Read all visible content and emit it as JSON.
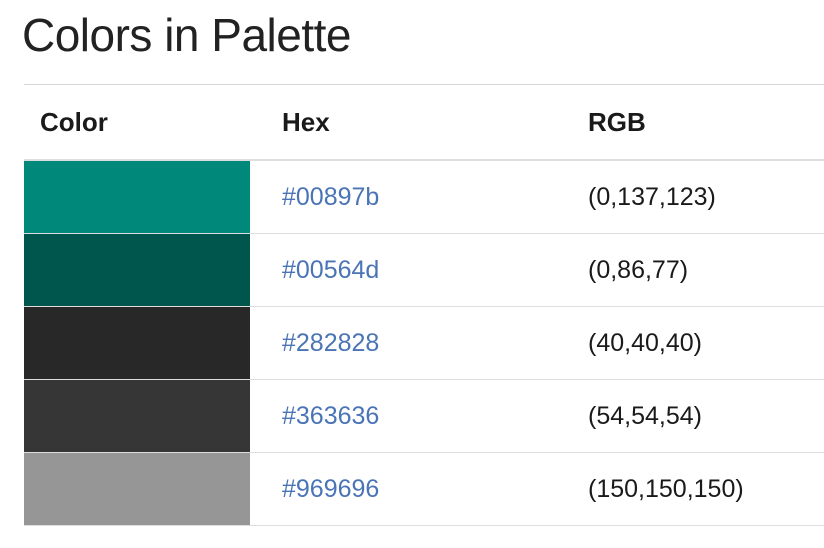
{
  "page": {
    "title": "Colors in Palette"
  },
  "table": {
    "headers": {
      "color": "Color",
      "hex": "Hex",
      "rgb": "RGB"
    },
    "rows": [
      {
        "swatch": "#00897b",
        "hex": "#00897b",
        "rgb": "(0,137,123)"
      },
      {
        "swatch": "#00564d",
        "hex": "#00564d",
        "rgb": "(0,86,77)"
      },
      {
        "swatch": "#282828",
        "hex": "#282828",
        "rgb": "(40,40,40)"
      },
      {
        "swatch": "#363636",
        "hex": "#363636",
        "rgb": "(54,54,54)"
      },
      {
        "swatch": "#969696",
        "hex": "#969696",
        "rgb": "(150,150,150)"
      }
    ]
  },
  "colors": {
    "link": "#4a74b5"
  }
}
